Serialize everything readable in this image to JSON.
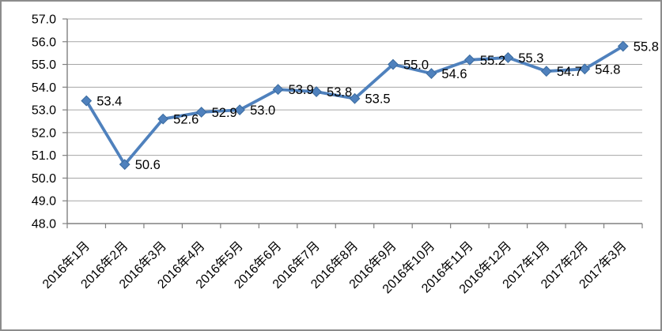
{
  "chart_data": {
    "type": "line",
    "title": "",
    "xlabel": "",
    "ylabel": "",
    "categories": [
      "2016年1月",
      "2016年2月",
      "2016年3月",
      "2016年4月",
      "2016年5月",
      "2016年6月",
      "2016年7月",
      "2016年8月",
      "2016年9月",
      "2016年10月",
      "2016年11月",
      "2016年12月",
      "2017年1月",
      "2017年2月",
      "2017年3月"
    ],
    "series": [
      {
        "values": [
          53.4,
          50.6,
          52.6,
          52.9,
          53.0,
          53.9,
          53.8,
          53.5,
          55.0,
          54.6,
          55.2,
          55.3,
          54.7,
          54.8,
          55.8
        ],
        "point_labels": [
          "53.4",
          "50.6",
          "52.6",
          "52.9",
          "53.0",
          "53.9",
          "53.8",
          "53.5",
          "55.0",
          "54.6",
          "55.2",
          "55.3",
          "54.7",
          "54.8",
          "55.8"
        ],
        "marker": "diamond",
        "color": "#4F81BD"
      }
    ],
    "ylim": [
      48.0,
      57.0
    ],
    "ytick_step": 1.0,
    "ytick_labels": [
      "48.0",
      "49.0",
      "50.0",
      "51.0",
      "52.0",
      "53.0",
      "54.0",
      "55.0",
      "56.0",
      "57.0"
    ],
    "grid": true,
    "legend_position": "none",
    "x_labels_rotation_deg": 45
  },
  "style": {
    "line_color": "#4F81BD",
    "marker_edge_color": "#3A6B9F",
    "gridline_color": "#A6A6A6",
    "axis_color": "#808080",
    "label_color": "#000000",
    "frame_border_color": "#8C8C8C",
    "background_color": "#FFFFFF"
  }
}
